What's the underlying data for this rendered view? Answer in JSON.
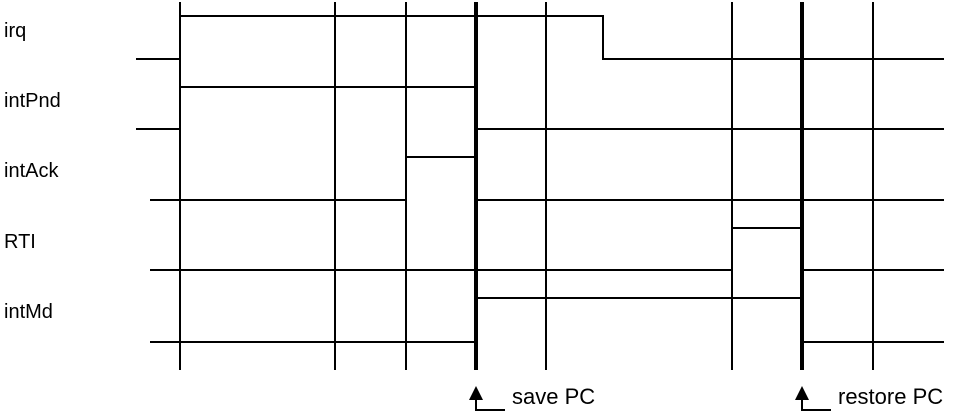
{
  "signals": [
    {
      "id": "irq",
      "label": "irq"
    },
    {
      "id": "intPnd",
      "label": "intPnd"
    },
    {
      "id": "intAck",
      "label": "intAck"
    },
    {
      "id": "RTI",
      "label": "RTI"
    },
    {
      "id": "intMd",
      "label": "intMd"
    }
  ],
  "markers": [
    {
      "id": "save-pc",
      "label": "save PC"
    },
    {
      "id": "restore-pc",
      "label": "restore PC"
    }
  ],
  "colors": {
    "line": "#000000",
    "background": "#ffffff"
  }
}
